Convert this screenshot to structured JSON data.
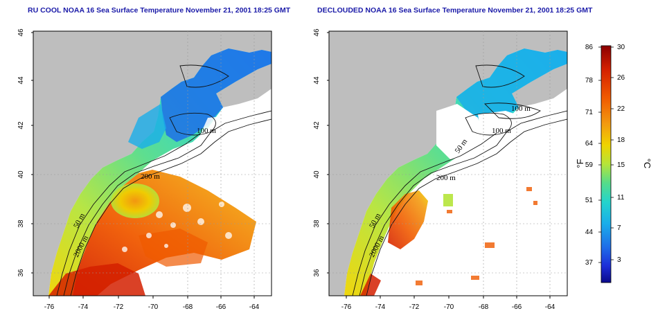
{
  "titles": {
    "left": "RU COOL NOAA 16 Sea Surface Temperature November 21, 2001 18:25 GMT",
    "right": "DECLOUDED NOAA 16 Sea Surface Temperature November 21, 2001 18:25 GMT"
  },
  "axes": {
    "x_ticks": [
      "-76",
      "-74",
      "-72",
      "-70",
      "-68",
      "-66",
      "-64"
    ],
    "y_ticks": [
      "36",
      "38",
      "40",
      "42",
      "44",
      "46"
    ]
  },
  "contour_labels": {
    "left": [
      "100 m",
      "200 m",
      "50 m",
      "2000 m"
    ],
    "right": [
      "100 m",
      "100 m",
      "50 m",
      "200 m",
      "50 m",
      "2000 m"
    ]
  },
  "colorbar": {
    "fahrenheit_ticks": [
      "86",
      "78",
      "71",
      "64",
      "59",
      "51",
      "44",
      "37"
    ],
    "celsius_ticks": [
      "30",
      "26",
      "22",
      "18",
      "15",
      "11",
      "7",
      "3"
    ],
    "unit_f": "°F",
    "unit_c": "°C",
    "colors": [
      "#8b0000",
      "#d42000",
      "#f05a00",
      "#f39a10",
      "#efd400",
      "#b5e43a",
      "#55dc8a",
      "#24d4cc",
      "#1aaeea",
      "#1f6ee8",
      "#1d2ed8",
      "#0b0a8a"
    ]
  },
  "map_colors": {
    "land": "#bebebe",
    "ocean_clear": "#ffffff"
  }
}
